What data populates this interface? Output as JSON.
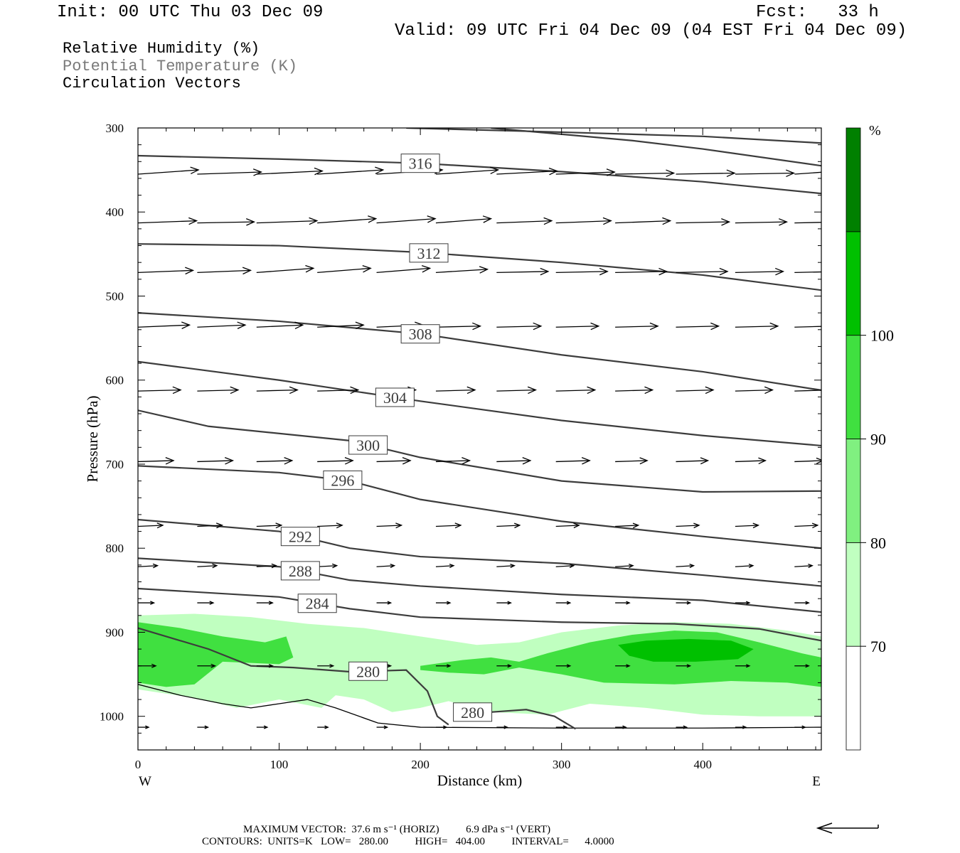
{
  "header": {
    "init": "Init: 00 UTC Thu 03 Dec 09",
    "fcst": "Fcst:   33 h",
    "valid": "Valid: 09 UTC Fri 04 Dec 09 (04 EST Fri 04 Dec 09)",
    "fields": [
      "Relative Humidity (%)",
      "Potential Temperature (K)",
      "Circulation Vectors"
    ]
  },
  "chart_data": {
    "type": "contour",
    "xlabel": "Distance (km)",
    "ylabel": "Pressure (hPa)",
    "xlim": [
      0,
      484
    ],
    "ylim": [
      1040,
      300
    ],
    "x_ticks": [
      "0",
      "100",
      "200",
      "300",
      "400"
    ],
    "y_ticks": [
      "300",
      "400",
      "500",
      "600",
      "700",
      "800",
      "900",
      "1000"
    ],
    "left_end_label": "W",
    "right_end_label": "E",
    "colorbar": {
      "unit": "%",
      "levels": [
        "70",
        "80",
        "90",
        "100"
      ],
      "colors": [
        "#ffffff",
        "#c0ffc0",
        "#80f080",
        "#40e040",
        "#00c000",
        "#008000"
      ]
    },
    "rh_shading": [
      {
        "level": 70,
        "color": "#c0ffc0",
        "points": [
          [
            0,
            880
          ],
          [
            40,
            878
          ],
          [
            80,
            882
          ],
          [
            120,
            890
          ],
          [
            160,
            895
          ],
          [
            200,
            905
          ],
          [
            240,
            915
          ],
          [
            270,
            912
          ],
          [
            300,
            900
          ],
          [
            340,
            892
          ],
          [
            380,
            888
          ],
          [
            420,
            890
          ],
          [
            460,
            898
          ],
          [
            484,
            905
          ],
          [
            484,
            1000
          ],
          [
            440,
            1000
          ],
          [
            400,
            998
          ],
          [
            360,
            990
          ],
          [
            320,
            985
          ],
          [
            290,
            998
          ],
          [
            250,
            995
          ],
          [
            220,
            982
          ],
          [
            200,
            990
          ],
          [
            180,
            995
          ],
          [
            160,
            980
          ],
          [
            140,
            975
          ],
          [
            130,
            990
          ],
          [
            100,
            980
          ],
          [
            70,
            990
          ],
          [
            40,
            978
          ],
          [
            0,
            968
          ]
        ]
      },
      {
        "level": 80,
        "color": "#40e040",
        "points": [
          [
            0,
            888
          ],
          [
            30,
            895
          ],
          [
            60,
            905
          ],
          [
            90,
            912
          ],
          [
            105,
            905
          ],
          [
            110,
            930
          ],
          [
            100,
            938
          ],
          [
            60,
            935
          ],
          [
            40,
            962
          ],
          [
            20,
            965
          ],
          [
            0,
            960
          ]
        ]
      },
      {
        "level": 80,
        "color": "#40e040",
        "points": [
          [
            200,
            940
          ],
          [
            230,
            933
          ],
          [
            250,
            930
          ],
          [
            270,
            935
          ],
          [
            290,
            925
          ],
          [
            320,
            912
          ],
          [
            350,
            903
          ],
          [
            380,
            898
          ],
          [
            410,
            900
          ],
          [
            440,
            912
          ],
          [
            470,
            925
          ],
          [
            484,
            930
          ],
          [
            484,
            965
          ],
          [
            460,
            960
          ],
          [
            420,
            958
          ],
          [
            380,
            962
          ],
          [
            330,
            960
          ],
          [
            300,
            950
          ],
          [
            270,
            942
          ],
          [
            245,
            950
          ],
          [
            220,
            948
          ],
          [
            200,
            945
          ]
        ]
      },
      {
        "level": 90,
        "color": "#00c000",
        "points": [
          [
            340,
            915
          ],
          [
            360,
            910
          ],
          [
            390,
            908
          ],
          [
            420,
            910
          ],
          [
            436,
            920
          ],
          [
            425,
            932
          ],
          [
            395,
            935
          ],
          [
            365,
            935
          ],
          [
            348,
            928
          ]
        ]
      }
    ],
    "theta_contours": [
      {
        "label": "316",
        "label_at": 200,
        "points": [
          [
            0,
            333
          ],
          [
            100,
            337
          ],
          [
            200,
            342
          ],
          [
            300,
            352
          ],
          [
            400,
            364
          ],
          [
            484,
            378
          ]
        ]
      },
      {
        "label": "",
        "label_at": null,
        "points": [
          [
            190,
            300
          ],
          [
            300,
            305
          ],
          [
            400,
            310
          ],
          [
            484,
            318
          ]
        ]
      },
      {
        "label": "",
        "label_at": null,
        "points": [
          [
            250,
            300
          ],
          [
            350,
            315
          ],
          [
            400,
            325
          ],
          [
            484,
            345
          ]
        ]
      },
      {
        "label": "312",
        "label_at": 206,
        "points": [
          [
            0,
            438
          ],
          [
            100,
            440
          ],
          [
            200,
            448
          ],
          [
            300,
            460
          ],
          [
            400,
            475
          ],
          [
            484,
            493
          ]
        ]
      },
      {
        "label": "308",
        "label_at": 200,
        "points": [
          [
            0,
            520
          ],
          [
            100,
            530
          ],
          [
            200,
            545
          ],
          [
            300,
            570
          ],
          [
            400,
            590
          ],
          [
            484,
            612
          ]
        ]
      },
      {
        "label": "304",
        "label_at": 182,
        "points": [
          [
            0,
            578
          ],
          [
            100,
            600
          ],
          [
            200,
            625
          ],
          [
            300,
            648
          ],
          [
            400,
            666
          ],
          [
            484,
            678
          ]
        ]
      },
      {
        "label": "300",
        "label_at": 163,
        "points": [
          [
            0,
            636
          ],
          [
            50,
            655
          ],
          [
            150,
            672
          ],
          [
            200,
            692
          ],
          [
            300,
            720
          ],
          [
            400,
            733
          ],
          [
            484,
            732
          ]
        ]
      },
      {
        "label": "296",
        "label_at": 145,
        "points": [
          [
            0,
            702
          ],
          [
            100,
            710
          ],
          [
            150,
            720
          ],
          [
            200,
            742
          ],
          [
            300,
            768
          ],
          [
            400,
            786
          ],
          [
            484,
            800
          ]
        ]
      },
      {
        "label": "292",
        "label_at": 115,
        "points": [
          [
            0,
            766
          ],
          [
            100,
            780
          ],
          [
            150,
            800
          ],
          [
            200,
            810
          ],
          [
            300,
            818
          ],
          [
            400,
            832
          ],
          [
            484,
            845
          ]
        ]
      },
      {
        "label": "288",
        "label_at": 115,
        "points": [
          [
            0,
            812
          ],
          [
            100,
            822
          ],
          [
            150,
            838
          ],
          [
            200,
            845
          ],
          [
            300,
            855
          ],
          [
            400,
            862
          ],
          [
            484,
            876
          ]
        ]
      },
      {
        "label": "284",
        "label_at": 127,
        "points": [
          [
            0,
            848
          ],
          [
            100,
            858
          ],
          [
            150,
            872
          ],
          [
            200,
            882
          ],
          [
            300,
            888
          ],
          [
            380,
            890
          ],
          [
            440,
            896
          ],
          [
            484,
            910
          ]
        ]
      },
      {
        "label": "280",
        "label_at": 163,
        "points": [
          [
            0,
            895
          ],
          [
            50,
            920
          ],
          [
            80,
            940
          ],
          [
            110,
            942
          ],
          [
            150,
            947
          ],
          [
            190,
            945
          ],
          [
            205,
            970
          ],
          [
            212,
            1000
          ],
          [
            220,
            1010
          ]
        ]
      },
      {
        "label": "280",
        "label_at": 237,
        "points": [
          [
            250,
            995
          ],
          [
            275,
            992
          ],
          [
            295,
            1000
          ],
          [
            310,
            1015
          ]
        ]
      }
    ],
    "wind_vectors": [
      {
        "pressure": 355,
        "x": [
          0,
          42,
          84,
          127,
          169,
          211,
          254,
          296,
          338,
          381,
          423,
          465
        ],
        "u": [
          34,
          36,
          37,
          37,
          37,
          35,
          34,
          33,
          33,
          33,
          33,
          33
        ],
        "w": [
          -0.4,
          -0.2,
          -0.3,
          -0.4,
          -0.4,
          -0.4,
          -0.3,
          -0.2,
          -0.1,
          -0.1,
          -0.1,
          -0.4
        ]
      },
      {
        "pressure": 413,
        "x": [
          0,
          42,
          84,
          127,
          169,
          211,
          254,
          296,
          338,
          381,
          423,
          465
        ],
        "u": [
          33,
          32,
          34,
          33,
          33,
          31,
          31,
          31,
          31,
          30,
          29,
          28
        ],
        "w": [
          -0.2,
          -0.1,
          -0.2,
          -0.4,
          -0.4,
          -0.4,
          -0.2,
          -0.2,
          -0.2,
          -0.1,
          -0.1,
          -0.1
        ]
      },
      {
        "pressure": 472,
        "x": [
          0,
          42,
          84,
          127,
          169,
          211,
          254,
          296,
          338,
          381,
          423,
          465
        ],
        "u": [
          31,
          30,
          32,
          30,
          30,
          29,
          29,
          29,
          29,
          29,
          27,
          27
        ],
        "w": [
          -0.2,
          -0.2,
          -0.4,
          -0.4,
          -0.4,
          -0.3,
          -0.1,
          -0.1,
          -0.1,
          -0.1,
          -0.1,
          -0.1
        ]
      },
      {
        "pressure": 537,
        "x": [
          0,
          42,
          84,
          127,
          169,
          211,
          254,
          296,
          338,
          381,
          423,
          465
        ],
        "u": [
          29,
          27,
          26,
          26,
          26,
          25,
          25,
          24,
          24,
          24,
          24,
          22
        ],
        "w": [
          -0.2,
          -0.2,
          -0.2,
          -0.2,
          -0.2,
          -0.1,
          -0.1,
          -0.1,
          -0.1,
          -0.1,
          -0.1,
          -0.1
        ]
      },
      {
        "pressure": 613,
        "x": [
          0,
          42,
          84,
          127,
          169,
          211,
          254,
          296,
          338,
          381,
          423,
          465
        ],
        "u": [
          24,
          23,
          23,
          23,
          22,
          22,
          22,
          22,
          21,
          21,
          21,
          20
        ],
        "w": [
          -0.1,
          -0.1,
          -0.1,
          -0.1,
          -0.1,
          -0.1,
          -0.1,
          -0.1,
          -0.1,
          -0.1,
          -0.1,
          -0.1
        ]
      },
      {
        "pressure": 697,
        "x": [
          0,
          42,
          84,
          127,
          169,
          211,
          254,
          296,
          338,
          381,
          423,
          465
        ],
        "u": [
          20,
          20,
          20,
          20,
          19,
          19,
          19,
          19,
          18,
          18,
          17,
          16
        ],
        "w": [
          -0.1,
          -0.1,
          -0.1,
          -0.1,
          -0.1,
          -0.1,
          -0.1,
          -0.1,
          -0.1,
          -0.1,
          -0.1,
          -0.1
        ]
      },
      {
        "pressure": 774,
        "x": [
          0,
          42,
          84,
          127,
          169,
          211,
          254,
          296,
          338,
          381,
          423,
          465
        ],
        "u": [
          14,
          14,
          14,
          14,
          14,
          14,
          13,
          13,
          13,
          13,
          13,
          13
        ],
        "w": [
          -0.1,
          -0.1,
          -0.1,
          -0.1,
          -0.1,
          -0.1,
          -0.1,
          -0.1,
          -0.1,
          -0.1,
          -0.1,
          -0.1
        ]
      },
      {
        "pressure": 822,
        "x": [
          0,
          42,
          84,
          127,
          169,
          211,
          254,
          296,
          338,
          381,
          423,
          465
        ],
        "u": [
          11,
          11,
          11,
          11,
          10,
          10,
          10,
          10,
          10,
          10,
          10,
          10
        ],
        "w": [
          -0.1,
          -0.1,
          -0.1,
          -0.1,
          -0.1,
          -0.1,
          -0.1,
          -0.1,
          -0.1,
          -0.1,
          -0.1,
          -0.1
        ]
      },
      {
        "pressure": 865,
        "x": [
          0,
          42,
          84,
          127,
          169,
          211,
          254,
          296,
          338,
          381,
          423,
          465
        ],
        "u": [
          9,
          9,
          9,
          9,
          8,
          8,
          8,
          8,
          8,
          8,
          8,
          8
        ],
        "w": [
          0,
          0,
          0,
          0,
          0,
          0,
          0,
          0,
          0,
          0,
          0,
          0
        ]
      },
      {
        "pressure": 940,
        "x": [
          0,
          42,
          84,
          127,
          169,
          211,
          254,
          296,
          338,
          381,
          423,
          465
        ],
        "u": [
          10,
          10,
          9,
          9,
          8,
          8,
          8,
          8,
          8,
          8,
          8,
          8
        ],
        "w": [
          0,
          0,
          0,
          0,
          0,
          0,
          0,
          0,
          0,
          0,
          0,
          0
        ]
      },
      {
        "pressure": 1013,
        "x": [
          0,
          42,
          84,
          127,
          169,
          211,
          254,
          296,
          338,
          381,
          423,
          465
        ],
        "u": [
          6,
          6,
          6,
          6,
          6,
          6,
          6,
          6,
          6,
          6,
          6,
          6
        ],
        "w": [
          0,
          0,
          0,
          0,
          0,
          0,
          0,
          0,
          0,
          0,
          0,
          0
        ]
      }
    ],
    "terrain": [
      [
        0,
        962
      ],
      [
        30,
        975
      ],
      [
        60,
        985
      ],
      [
        80,
        990
      ],
      [
        100,
        985
      ],
      [
        120,
        980
      ],
      [
        140,
        990
      ],
      [
        170,
        1008
      ],
      [
        200,
        1013
      ],
      [
        300,
        1014
      ],
      [
        400,
        1014
      ],
      [
        484,
        1013
      ]
    ]
  },
  "footer": {
    "line1": "MAXIMUM VECTOR:  37.6 m s⁻¹ (HORIZ)          6.9 dPa s⁻¹ (VERT)",
    "line2": "CONTOURS:  UNITS=K   LOW=   280.00          HIGH=   404.00          INTERVAL=      4.0000"
  }
}
